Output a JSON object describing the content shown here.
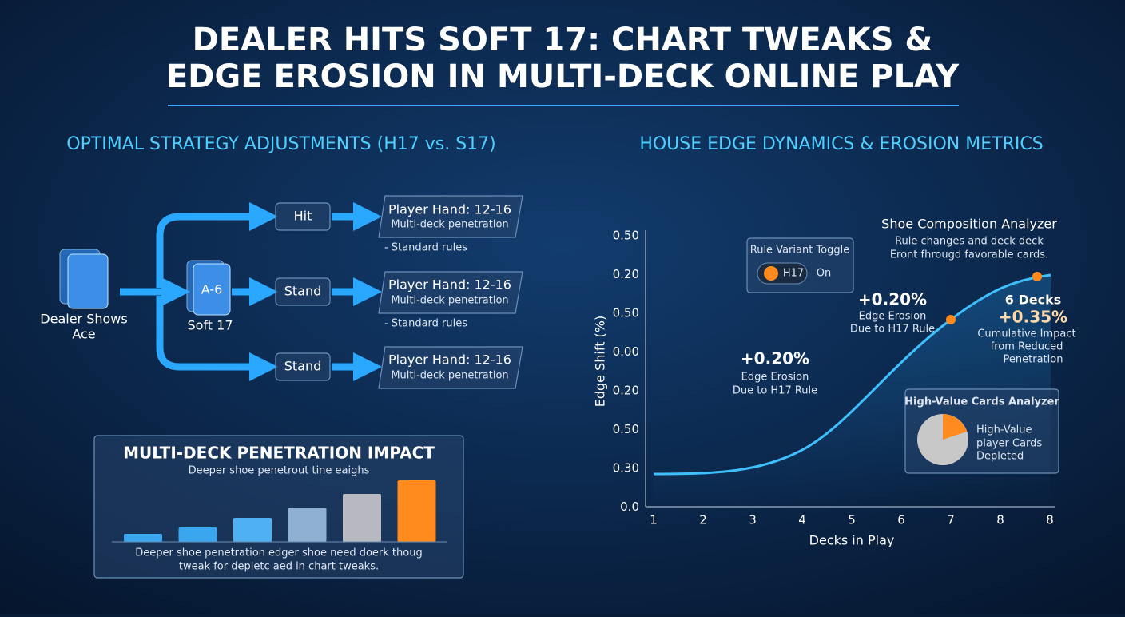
{
  "header": {
    "title": [
      "DEALER HITS SOFT 17: CHART TWEAKS &",
      "EDGE EROSION IN MULTI-DECK ONLINE PLAY"
    ]
  },
  "left": {
    "heading": "OPTIMAL STRATEGY ADJUSTMENTS (H17 vs. S17)",
    "dealer": [
      "Dealer Shows",
      "Ace"
    ],
    "card": "A-6",
    "soft": "Soft 17",
    "actions": [
      "Hit",
      "Stand",
      "Stand"
    ],
    "hands": [
      {
        "title": "Player Hand: 12-16",
        "sub": "Multi-deck penetration",
        "note": "- Standard rules"
      },
      {
        "title": "Player Hand: 12-16",
        "sub": "Multi-deck penetration",
        "note": "- Standard rules"
      },
      {
        "title": "Player Hand: 12-16",
        "sub": "Multi-deck penetration"
      }
    ]
  },
  "right": {
    "heading": "HOUSE EDGE DYNAMICS & EROSION METRICS",
    "y_axis_title": "Edge Shift (%)",
    "x_axis_title": "Decks in Play",
    "y_labels": [
      "0.50",
      "0.20",
      "0.50",
      "0.00",
      "0.20",
      "0.50",
      "0.30",
      "0.0"
    ],
    "x_labels": [
      "1",
      "2",
      "3",
      "4",
      "5",
      "6",
      "7",
      "8",
      "8"
    ],
    "toggle": {
      "title": "Rule Variant Toggle",
      "option": "H17",
      "state": "On"
    },
    "annotation_1": [
      "+0.20%",
      "Edge Erosion",
      "Due to H17 Rule"
    ],
    "annotation_2": [
      "+0.20%",
      "Edge Erosion",
      "Due to H17 Rule"
    ],
    "analyzer": [
      "Shoe Composition Analyzer",
      "Rule changes and deck deck",
      "Eront fhrougd favorable cards."
    ],
    "decks": [
      "6 Decks",
      "+0.35%",
      "Cumulative Impact",
      "from Reduced",
      "Penetration"
    ],
    "cards_box": {
      "title": "High-Value Cards Analyzer",
      "lines": [
        "High-Value",
        "player Cards",
        "Depleted"
      ]
    }
  },
  "chart_data": {
    "type": "bar",
    "title": "MULTI-DECK PENETRATION IMPACT",
    "subtitle": "Deeper shoe penetrout tine eaighs",
    "caption": [
      "Deeper shoe penetration edger shoe need doerk thoug",
      "tweak for depletc aed in chart tweaks."
    ],
    "values": [
      10,
      18,
      30,
      43,
      60,
      77
    ],
    "colors": [
      "#3aa6f0",
      "#3aa6f0",
      "#4fb0f2",
      "#8fb0d0",
      "#b8b8c0",
      "#ff8a1e"
    ],
    "ylim": [
      0,
      100
    ]
  }
}
